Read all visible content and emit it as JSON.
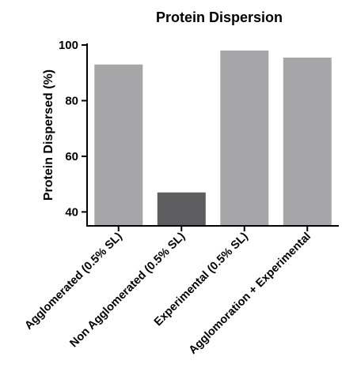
{
  "chart_data": {
    "type": "bar",
    "title": "Protein Dispersion",
    "xlabel": "",
    "ylabel": "Protein Dispersed (%)",
    "categories": [
      "Agglomerated (0.5% SL)",
      "Non Agglomerated (0.5% SL)",
      "Experimental (0.5% SL)",
      "Agglomoration + Experimental"
    ],
    "values": [
      93,
      47,
      98,
      95.5
    ],
    "bar_colors": [
      "#a6a6a8",
      "#5e5e60",
      "#a6a6a8",
      "#a6a6a8"
    ],
    "ylim": [
      35,
      100
    ],
    "yticks": [
      40,
      60,
      80,
      100
    ],
    "grid": false,
    "legend": "none"
  }
}
